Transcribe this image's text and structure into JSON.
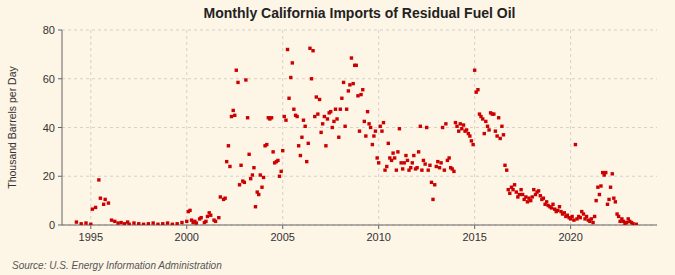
{
  "chart_data": {
    "type": "scatter",
    "title": "Monthly California Imports of Residual Fuel Oil",
    "ylabel": "Thousand Barrels per Day",
    "source": "Source: U.S. Energy Information Administration",
    "color": "#cc0000",
    "marker": "square",
    "grid": true,
    "xlim": [
      1993.5,
      2024.5
    ],
    "ylim": [
      0,
      80
    ],
    "xticks": [
      1995,
      2000,
      2005,
      2010,
      2015,
      2020
    ],
    "yticks": [
      0,
      20,
      40,
      60,
      80
    ],
    "x": [
      1994.25,
      1994.5,
      1994.75,
      1995.0,
      1995.08,
      1995.25,
      1995.42,
      1995.5,
      1995.67,
      1995.75,
      1995.92,
      1996.08,
      1996.25,
      1996.42,
      1996.58,
      1996.75,
      1996.92,
      1997.0,
      1997.25,
      1997.5,
      1997.75,
      1998.0,
      1998.25,
      1998.5,
      1998.75,
      1999.0,
      1999.25,
      1999.5,
      1999.75,
      2000.0,
      2000.08,
      2000.17,
      2000.25,
      2000.33,
      2000.42,
      2000.5,
      2000.67,
      2000.75,
      2000.92,
      2001.0,
      2001.08,
      2001.17,
      2001.25,
      2001.42,
      2001.5,
      2001.67,
      2001.75,
      2001.92,
      2002.0,
      2002.08,
      2002.17,
      2002.25,
      2002.33,
      2002.42,
      2002.5,
      2002.58,
      2002.67,
      2002.75,
      2002.83,
      2002.92,
      2003.0,
      2003.08,
      2003.17,
      2003.25,
      2003.33,
      2003.42,
      2003.5,
      2003.58,
      2003.67,
      2003.75,
      2003.83,
      2003.92,
      2004.0,
      2004.08,
      2004.17,
      2004.25,
      2004.33,
      2004.42,
      2004.5,
      2004.58,
      2004.67,
      2004.75,
      2004.83,
      2004.92,
      2005.0,
      2005.08,
      2005.17,
      2005.25,
      2005.33,
      2005.42,
      2005.5,
      2005.58,
      2005.67,
      2005.75,
      2005.83,
      2005.92,
      2006.0,
      2006.08,
      2006.17,
      2006.25,
      2006.33,
      2006.42,
      2006.5,
      2006.58,
      2006.67,
      2006.75,
      2006.83,
      2006.92,
      2007.0,
      2007.08,
      2007.17,
      2007.25,
      2007.33,
      2007.42,
      2007.5,
      2007.58,
      2007.67,
      2007.75,
      2007.83,
      2007.92,
      2008.0,
      2008.08,
      2008.17,
      2008.25,
      2008.33,
      2008.42,
      2008.5,
      2008.58,
      2008.67,
      2008.75,
      2008.83,
      2008.92,
      2009.0,
      2009.08,
      2009.17,
      2009.25,
      2009.33,
      2009.42,
      2009.5,
      2009.58,
      2009.67,
      2009.75,
      2009.83,
      2009.92,
      2010.0,
      2010.08,
      2010.17,
      2010.25,
      2010.33,
      2010.42,
      2010.5,
      2010.58,
      2010.67,
      2010.75,
      2010.83,
      2010.92,
      2011.0,
      2011.08,
      2011.17,
      2011.25,
      2011.33,
      2011.42,
      2011.5,
      2011.58,
      2011.67,
      2011.75,
      2011.83,
      2011.92,
      2012.0,
      2012.08,
      2012.17,
      2012.25,
      2012.33,
      2012.42,
      2012.5,
      2012.58,
      2012.67,
      2012.75,
      2012.83,
      2012.92,
      2013.0,
      2013.08,
      2013.17,
      2013.25,
      2013.33,
      2013.42,
      2013.5,
      2013.58,
      2013.67,
      2013.75,
      2013.83,
      2013.92,
      2014.0,
      2014.08,
      2014.17,
      2014.25,
      2014.33,
      2014.42,
      2014.5,
      2014.58,
      2014.67,
      2014.75,
      2014.83,
      2014.92,
      2015.0,
      2015.08,
      2015.17,
      2015.25,
      2015.33,
      2015.42,
      2015.5,
      2015.58,
      2015.67,
      2015.75,
      2015.83,
      2015.92,
      2016.0,
      2016.08,
      2016.17,
      2016.25,
      2016.33,
      2016.42,
      2016.5,
      2016.58,
      2016.67,
      2016.75,
      2016.83,
      2016.92,
      2017.0,
      2017.08,
      2017.17,
      2017.25,
      2017.33,
      2017.42,
      2017.5,
      2017.58,
      2017.67,
      2017.75,
      2017.83,
      2017.92,
      2018.0,
      2018.08,
      2018.17,
      2018.25,
      2018.33,
      2018.42,
      2018.5,
      2018.58,
      2018.67,
      2018.75,
      2018.83,
      2018.92,
      2019.0,
      2019.08,
      2019.17,
      2019.25,
      2019.33,
      2019.42,
      2019.5,
      2019.58,
      2019.67,
      2019.75,
      2019.83,
      2019.92,
      2020.0,
      2020.08,
      2020.17,
      2020.25,
      2020.33,
      2020.42,
      2020.5,
      2020.58,
      2020.67,
      2020.75,
      2020.83,
      2020.92,
      2021.0,
      2021.08,
      2021.17,
      2021.25,
      2021.33,
      2021.42,
      2021.5,
      2021.58,
      2021.67,
      2021.75,
      2021.83,
      2021.92,
      2022.0,
      2022.08,
      2022.17,
      2022.25,
      2022.33,
      2022.42,
      2022.5,
      2022.58,
      2022.67,
      2022.75,
      2022.83,
      2022.92,
      2023.0,
      2023.08,
      2023.17,
      2023.25,
      2023.42
    ],
    "values": [
      1.2,
      0.5,
      0.8,
      0.3,
      6.5,
      7.2,
      18.5,
      11.0,
      8.5,
      10.5,
      9.0,
      2.0,
      1.5,
      0.8,
      1.0,
      0.5,
      1.2,
      0.3,
      0.8,
      0.5,
      0.3,
      0.5,
      0.8,
      0.3,
      0.5,
      0.8,
      0.3,
      0.5,
      1.0,
      1.5,
      5.5,
      6.0,
      2.0,
      1.0,
      1.5,
      0.8,
      2.5,
      3.0,
      1.0,
      1.5,
      3.5,
      5.0,
      4.0,
      2.0,
      1.5,
      3.0,
      11.5,
      10.5,
      11.0,
      26.0,
      32.5,
      24.0,
      44.5,
      47.0,
      45.0,
      63.5,
      58.5,
      16.5,
      24.5,
      18.0,
      17.5,
      59.5,
      44.0,
      29.0,
      19.0,
      20.5,
      23.5,
      7.5,
      13.5,
      12.5,
      20.5,
      15.5,
      19.5,
      32.5,
      33.0,
      44.0,
      43.5,
      44.0,
      30.0,
      25.5,
      26.0,
      26.5,
      20.0,
      22.0,
      30.5,
      44.5,
      43.0,
      72.0,
      52.0,
      60.5,
      66.5,
      47.5,
      45.0,
      44.5,
      32.5,
      28.5,
      36.0,
      43.0,
      40.5,
      26.0,
      33.5,
      72.5,
      60.0,
      71.5,
      44.5,
      52.5,
      45.5,
      51.5,
      38.0,
      41.5,
      44.5,
      32.5,
      43.5,
      46.0,
      46.5,
      40.0,
      42.5,
      47.5,
      43.5,
      36.0,
      47.5,
      52.0,
      58.5,
      40.5,
      47.5,
      55.0,
      57.5,
      68.5,
      58.0,
      65.5,
      65.5,
      53.0,
      38.5,
      53.5,
      55.5,
      42.5,
      36.5,
      46.5,
      41.5,
      40.0,
      33.0,
      36.5,
      38.5,
      27.5,
      25.5,
      40.5,
      38.5,
      42.0,
      22.5,
      24.0,
      33.5,
      27.5,
      26.5,
      29.5,
      27.5,
      22.5,
      30.0,
      39.5,
      25.5,
      23.0,
      25.5,
      28.5,
      26.5,
      22.5,
      23.5,
      25.5,
      28.5,
      23.0,
      23.5,
      30.0,
      40.5,
      22.5,
      26.5,
      25.0,
      40.0,
      22.5,
      24.5,
      17.5,
      10.5,
      16.5,
      24.0,
      26.0,
      23.5,
      25.5,
      40.0,
      22.5,
      41.5,
      26.5,
      27.5,
      23.5,
      23.0,
      22.0,
      42.0,
      40.5,
      38.5,
      41.5,
      39.5,
      41.0,
      38.5,
      39.0,
      37.5,
      36.5,
      34.5,
      33.0,
      63.5,
      54.5,
      55.5,
      45.5,
      44.5,
      43.5,
      37.5,
      42.5,
      40.5,
      39.0,
      46.0,
      45.5,
      45.5,
      38.5,
      36.5,
      44.0,
      35.5,
      40.5,
      37.0,
      24.5,
      22.5,
      14.5,
      13.0,
      15.5,
      14.5,
      16.5,
      13.5,
      11.5,
      12.5,
      14.5,
      12.5,
      10.5,
      11.5,
      9.5,
      11.0,
      10.0,
      11.5,
      14.5,
      12.5,
      13.5,
      14.0,
      12.0,
      10.5,
      11.0,
      8.5,
      9.5,
      8.0,
      7.5,
      7.0,
      8.5,
      6.5,
      5.5,
      6.0,
      7.5,
      5.5,
      4.5,
      5.0,
      3.5,
      4.0,
      3.0,
      2.5,
      3.5,
      2.0,
      33.0,
      2.5,
      3.5,
      3.0,
      5.5,
      4.5,
      2.5,
      3.5,
      2.0,
      1.5,
      2.5,
      1.0,
      3.5,
      10.0,
      15.5,
      12.5,
      16.0,
      21.5,
      20.5,
      21.5,
      8.5,
      10.5,
      15.5,
      21.0,
      11.0,
      9.5,
      4.5,
      3.5,
      1.5,
      2.5,
      1.5,
      0.5,
      1.0,
      2.5,
      1.5,
      1.0,
      0.5,
      0.3
    ]
  }
}
